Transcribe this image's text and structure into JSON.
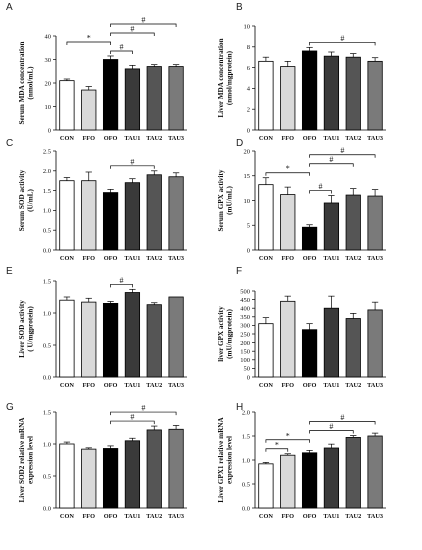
{
  "figure": {
    "categories": [
      "CON",
      "FFO",
      "OFO",
      "TAU1",
      "TAU2",
      "TAU3"
    ],
    "bar_colors": [
      "#ffffff",
      "#d9d9d9",
      "#000000",
      "#3a3a3a",
      "#555555",
      "#7a7a7a"
    ],
    "bar_outline": "#000000"
  },
  "chart_data": [
    {
      "panel": "A",
      "type": "bar",
      "ylabel": [
        "Serum MDA concentration",
        "(nmol/mL)"
      ],
      "ylim": [
        0,
        40
      ],
      "yticks": [
        0,
        10,
        20,
        30,
        40
      ],
      "values": [
        21,
        17,
        30,
        26,
        27,
        27
      ],
      "errors": [
        0.7,
        1.5,
        1.5,
        1.5,
        0.8,
        0.8
      ],
      "brackets": [
        {
          "from": 0,
          "to": 2,
          "label": "*"
        },
        {
          "from": 2,
          "to": 3,
          "label": "#"
        },
        {
          "from": 2,
          "to": 4,
          "label": "#"
        },
        {
          "from": 2,
          "to": 5,
          "label": "#"
        }
      ]
    },
    {
      "panel": "B",
      "type": "bar",
      "ylabel": [
        "Liver MDA concentration",
        "(nmol/mgprotein)"
      ],
      "ylim": [
        0,
        10
      ],
      "yticks": [
        0,
        2,
        4,
        6,
        8,
        10
      ],
      "values": [
        6.6,
        6.1,
        7.6,
        7.1,
        7.0,
        6.6
      ],
      "errors": [
        0.4,
        0.5,
        0.35,
        0.4,
        0.35,
        0.35
      ],
      "brackets": [
        {
          "from": 2,
          "to": 5,
          "label": "#"
        }
      ]
    },
    {
      "panel": "C",
      "type": "bar",
      "ylabel": [
        "Serum SOD activity",
        "(U/mL)"
      ],
      "ylim": [
        0,
        2.5
      ],
      "yticks": [
        "0.0",
        "0.5",
        "1.0",
        "1.5",
        "2.0",
        "2.5"
      ],
      "values": [
        1.75,
        1.75,
        1.45,
        1.7,
        1.9,
        1.85
      ],
      "errors": [
        0.08,
        0.22,
        0.08,
        0.1,
        0.1,
        0.1
      ],
      "brackets": [
        {
          "from": 2,
          "to": 4,
          "label": "#"
        }
      ]
    },
    {
      "panel": "D",
      "type": "bar",
      "ylabel": [
        "Serum GPX activity",
        "(mU/mL)"
      ],
      "ylim": [
        0,
        20
      ],
      "yticks": [
        0,
        5,
        10,
        15,
        20
      ],
      "values": [
        13.2,
        11.2,
        4.6,
        9.5,
        11.1,
        10.9
      ],
      "errors": [
        1.4,
        1.5,
        0.5,
        1.5,
        1.3,
        1.3
      ],
      "brackets": [
        {
          "from": 0,
          "to": 2,
          "label": "*"
        },
        {
          "from": 2,
          "to": 3,
          "label": "#"
        },
        {
          "from": 2,
          "to": 4,
          "label": "#"
        },
        {
          "from": 2,
          "to": 5,
          "label": "#"
        }
      ]
    },
    {
      "panel": "E",
      "type": "bar",
      "ylabel": [
        "Liver SOD activity",
        "( U/mgprotein)"
      ],
      "ylim": [
        0,
        1.5
      ],
      "yticks": [
        "0.0",
        "0.5",
        "1.0",
        "1.5"
      ],
      "values": [
        1.2,
        1.17,
        1.15,
        1.32,
        1.13,
        1.25
      ],
      "errors": [
        0.05,
        0.06,
        0.03,
        0.05,
        0.03,
        0.0
      ],
      "brackets": [
        {
          "from": 2,
          "to": 3,
          "label": "#"
        }
      ]
    },
    {
      "panel": "F",
      "type": "bar",
      "ylabel": [
        "liver GPX activity",
        "(mU/mgprotein)"
      ],
      "ylim": [
        0,
        500
      ],
      "yticks": [
        0,
        50,
        100,
        150,
        200,
        250,
        300,
        350,
        400,
        450,
        500
      ],
      "values": [
        310,
        440,
        275,
        400,
        340,
        390
      ],
      "errors": [
        35,
        30,
        35,
        70,
        30,
        45
      ],
      "brackets": []
    },
    {
      "panel": "G",
      "type": "bar",
      "ylabel": [
        "Liver SOD2 relative mRNA",
        "expression level"
      ],
      "ylim": [
        0,
        1.5
      ],
      "yticks": [
        "0.0",
        "0.5",
        "1.0",
        "1.5"
      ],
      "values": [
        1.0,
        0.92,
        0.93,
        1.05,
        1.22,
        1.23
      ],
      "errors": [
        0.03,
        0.02,
        0.04,
        0.04,
        0.06,
        0.06
      ],
      "brackets": [
        {
          "from": 2,
          "to": 4,
          "label": "#"
        },
        {
          "from": 2,
          "to": 5,
          "label": "#"
        }
      ]
    },
    {
      "panel": "H",
      "type": "bar",
      "ylabel": [
        "Liver GPX1 relative mRNA",
        "expression level"
      ],
      "ylim": [
        0,
        2.0
      ],
      "yticks": [
        "0.0",
        "0.5",
        "1.0",
        "1.5",
        "2.0"
      ],
      "values": [
        0.92,
        1.1,
        1.15,
        1.25,
        1.47,
        1.5
      ],
      "errors": [
        0.03,
        0.03,
        0.05,
        0.08,
        0.04,
        0.06
      ],
      "brackets": [
        {
          "from": 0,
          "to": 1,
          "label": "*"
        },
        {
          "from": 0,
          "to": 2,
          "label": "*"
        },
        {
          "from": 2,
          "to": 4,
          "label": "#"
        },
        {
          "from": 2,
          "to": 5,
          "label": "#"
        }
      ]
    }
  ]
}
